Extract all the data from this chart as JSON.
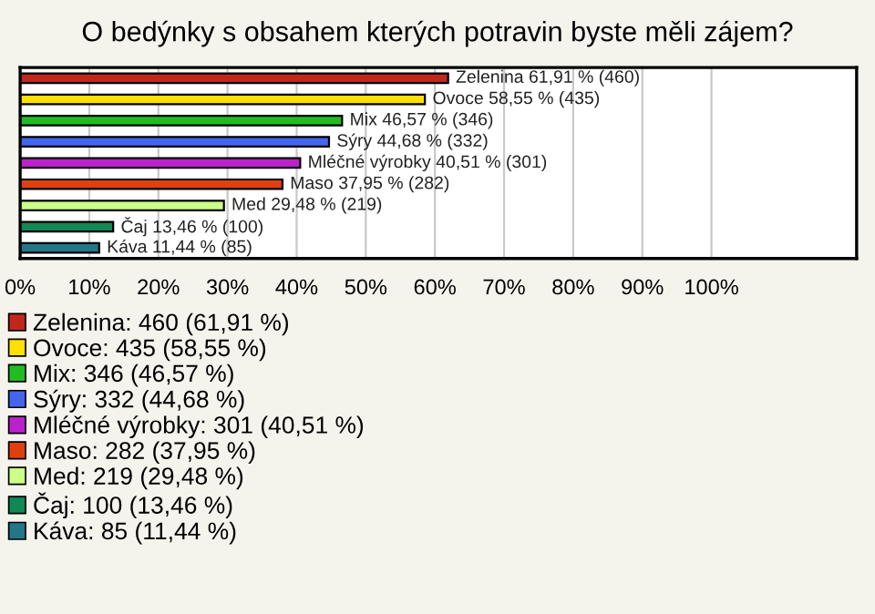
{
  "chart_data": {
    "type": "bar",
    "orientation": "horizontal",
    "title": "O bedýnky s obsahem kterých potravin byste měli zájem?",
    "categories": [
      null,
      null,
      null,
      null,
      null,
      null,
      null,
      null,
      null
    ],
    "series": [
      {
        "name": "Zelenina: 460 (61,91 %)",
        "color": "#c0281c",
        "values": [
          61.91,
          null,
          null,
          null,
          null,
          null,
          null,
          null,
          null
        ],
        "value_labels": [
          "Zelenina 61,91 % (460)",
          null,
          null,
          null,
          null,
          null,
          null,
          null,
          null
        ]
      },
      {
        "name": "Ovoce: 435 (58,55 %)",
        "color": "#ffe000",
        "values": [
          null,
          58.55,
          null,
          null,
          null,
          null,
          null,
          null,
          null
        ],
        "value_labels": [
          null,
          "Ovoce 58,55 % (435)",
          null,
          null,
          null,
          null,
          null,
          null,
          null
        ]
      },
      {
        "name": "Mix: 346 (46,57 %)",
        "color": "#22bb22",
        "values": [
          null,
          null,
          46.57,
          null,
          null,
          null,
          null,
          null,
          null
        ],
        "value_labels": [
          null,
          null,
          "Mix 46,57 % (346)",
          null,
          null,
          null,
          null,
          null,
          null
        ]
      },
      {
        "name": "Sýry: 332 (44,68 %)",
        "color": "#4466ee",
        "values": [
          null,
          null,
          null,
          44.68,
          null,
          null,
          null,
          null,
          null
        ],
        "value_labels": [
          null,
          null,
          null,
          "Sýry 44,68 % (332)",
          null,
          null,
          null,
          null,
          null
        ]
      },
      {
        "name": "Mléčné výrobky: 301 (40,51 %)",
        "color": "#bb22cc",
        "values": [
          null,
          null,
          null,
          null,
          40.51,
          null,
          null,
          null,
          null
        ],
        "value_labels": [
          null,
          null,
          null,
          null,
          "Mléčné výrobky 40,51 % (301)",
          null,
          null,
          null,
          null
        ]
      },
      {
        "name": "Maso: 282 (37,95 %)",
        "color": "#e04010",
        "values": [
          null,
          null,
          null,
          null,
          null,
          37.95,
          null,
          null,
          null
        ],
        "value_labels": [
          null,
          null,
          null,
          null,
          null,
          "Maso 37,95 % (282)",
          null,
          null,
          null
        ]
      },
      {
        "name": "Med: 219 (29,48 %)",
        "color": "#ccff88",
        "values": [
          null,
          null,
          null,
          null,
          null,
          null,
          29.48,
          null,
          null
        ],
        "value_labels": [
          null,
          null,
          null,
          null,
          null,
          null,
          "Med 29,48 % (219)",
          null,
          null
        ]
      },
      {
        "name": "Čaj: 100 (13,46 %)",
        "color": "#118855",
        "values": [
          null,
          null,
          null,
          null,
          null,
          null,
          null,
          13.46,
          null
        ],
        "value_labels": [
          null,
          null,
          null,
          null,
          null,
          null,
          null,
          "Čaj 13,46 % (100)",
          null
        ]
      },
      {
        "name": "Káva: 85 (11,44 %)",
        "color": "#227788",
        "values": [
          null,
          null,
          null,
          null,
          null,
          null,
          null,
          null,
          11.44
        ],
        "value_labels": [
          null,
          null,
          null,
          null,
          null,
          null,
          null,
          null,
          "Káva 11,44 % (85)"
        ]
      }
    ],
    "xlim": [
      0,
      121
    ],
    "xticks": [
      {
        "value": 0,
        "label": "0%"
      },
      {
        "value": 10,
        "label": "10%"
      },
      {
        "value": 20,
        "label": "20%"
      },
      {
        "value": 30,
        "label": "30%"
      },
      {
        "value": 40,
        "label": "40%"
      },
      {
        "value": 50,
        "label": "50%"
      },
      {
        "value": 60,
        "label": "60%"
      },
      {
        "value": 70,
        "label": "70%"
      },
      {
        "value": 80,
        "label": "80%"
      },
      {
        "value": 90,
        "label": "90%"
      },
      {
        "value": 100,
        "label": "100%"
      }
    ],
    "grid": "x",
    "legend": "bottom"
  }
}
